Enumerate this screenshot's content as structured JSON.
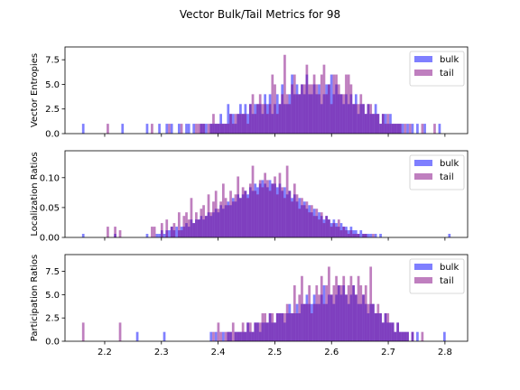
{
  "chart_data": {
    "type": "bar",
    "title": "Vector Bulk/Tail Metrics for 98",
    "colors": {
      "bulk": "#0000ff",
      "tail": "#800080"
    },
    "opacity": 0.5,
    "legend_placement": "top-right",
    "grid": false,
    "xlim": [
      2.13,
      2.84
    ],
    "xticks": [
      "2.2",
      "2.3",
      "2.4",
      "2.5",
      "2.6",
      "2.7",
      "2.8"
    ],
    "panels": [
      {
        "ylabel": "Vector Entropies",
        "ylim": [
          0,
          8.8
        ],
        "yticks": [
          "0.0",
          "2.5",
          "5.0",
          "7.5"
        ],
        "series": [
          {
            "name": "bulk",
            "x_range": [
              2.16,
              2.81
            ],
            "values": [
              1,
              0,
              0,
              0,
              0,
              0,
              0,
              0,
              0,
              0,
              0,
              0,
              0,
              0,
              0,
              0,
              1,
              0,
              0,
              0,
              0,
              0,
              0,
              0,
              0,
              0,
              1,
              0,
              0,
              0,
              0,
              1,
              0,
              0,
              1,
              0,
              1,
              0,
              0,
              1,
              0,
              0,
              1,
              1,
              0,
              1,
              0,
              0,
              1,
              1,
              1,
              0,
              1,
              1,
              1,
              1,
              2,
              1,
              1,
              3,
              2,
              2,
              1,
              2,
              3,
              2,
              3,
              2,
              3,
              2,
              3,
              3,
              3,
              2,
              4,
              3,
              4,
              2,
              3,
              4,
              3,
              5,
              3,
              3,
              4,
              6,
              4,
              5,
              4,
              5,
              4,
              6,
              4,
              4,
              5,
              4,
              5,
              3,
              4,
              5,
              5,
              6,
              4,
              5,
              4,
              4,
              3,
              4,
              3,
              4,
              3,
              4,
              2,
              3,
              3,
              2,
              3,
              2,
              2,
              3,
              2,
              1,
              2,
              2,
              1,
              2,
              1,
              1,
              1,
              1,
              1,
              0,
              1,
              0,
              1,
              0,
              1,
              0,
              0,
              1,
              0,
              0,
              0,
              0,
              0,
              1,
              0,
              0,
              0,
              0
            ]
          },
          {
            "name": "tail",
            "x_range": [
              2.16,
              2.81
            ],
            "values": [
              0,
              0,
              0,
              0,
              0,
              0,
              0,
              0,
              0,
              0,
              1,
              0,
              0,
              0,
              0,
              0,
              0,
              0,
              0,
              0,
              0,
              0,
              0,
              0,
              0,
              0,
              0,
              0,
              1,
              0,
              0,
              0,
              0,
              0,
              0,
              1,
              0,
              0,
              0,
              0,
              1,
              0,
              0,
              0,
              0,
              0,
              1,
              1,
              1,
              1,
              0,
              1,
              1,
              2,
              1,
              1,
              1,
              1,
              1,
              1,
              2,
              1,
              2,
              2,
              2,
              2,
              2,
              1,
              3,
              4,
              2,
              3,
              4,
              3,
              3,
              2,
              3,
              6,
              5,
              2,
              3,
              4,
              8,
              4,
              3,
              5,
              6,
              4,
              4,
              5,
              5,
              7,
              5,
              5,
              6,
              5,
              4,
              6,
              7,
              4,
              5,
              3,
              6,
              6,
              5,
              4,
              4,
              6,
              6,
              5,
              3,
              3,
              3,
              4,
              3,
              2,
              3,
              3,
              2,
              2,
              2,
              1,
              2,
              1,
              2,
              1,
              1,
              1,
              1,
              1,
              0,
              1,
              0,
              1,
              0,
              0,
              0,
              0,
              1,
              0,
              0,
              0,
              0,
              1,
              0,
              0,
              0,
              0,
              0,
              0
            ]
          }
        ]
      },
      {
        "ylabel": "Localization Ratios",
        "ylim": [
          0,
          0.145
        ],
        "yticks": [
          "0.00",
          "0.05",
          "0.10"
        ],
        "series": [
          {
            "name": "bulk",
            "x_range": [
              2.16,
              2.81
            ],
            "values": [
              0.006,
              0,
              0,
              0,
              0,
              0,
              0,
              0,
              0,
              0,
              0,
              0,
              0,
              0.006,
              0,
              0,
              0,
              0,
              0,
              0,
              0,
              0,
              0,
              0,
              0,
              0,
              0.006,
              0,
              0,
              0,
              0.006,
              0.006,
              0.012,
              0.006,
              0.012,
              0.012,
              0.018,
              0.012,
              0.018,
              0.012,
              0.018,
              0.018,
              0.024,
              0.018,
              0.03,
              0.024,
              0.03,
              0.03,
              0.036,
              0.03,
              0.036,
              0.042,
              0.036,
              0.042,
              0.048,
              0.042,
              0.054,
              0.048,
              0.054,
              0.06,
              0.054,
              0.066,
              0.06,
              0.072,
              0.066,
              0.072,
              0.078,
              0.072,
              0.084,
              0.078,
              0.09,
              0.084,
              0.09,
              0.096,
              0.09,
              0.084,
              0.096,
              0.09,
              0.09,
              0.084,
              0.09,
              0.078,
              0.084,
              0.072,
              0.078,
              0.066,
              0.072,
              0.06,
              0.066,
              0.054,
              0.06,
              0.048,
              0.054,
              0.042,
              0.048,
              0.036,
              0.042,
              0.036,
              0.03,
              0.036,
              0.03,
              0.024,
              0.03,
              0.024,
              0.018,
              0.024,
              0.018,
              0.018,
              0.012,
              0.018,
              0.012,
              0.012,
              0.006,
              0.012,
              0.006,
              0.006,
              0.006,
              0.006,
              0,
              0.006,
              0,
              0.006,
              0,
              0,
              0,
              0,
              0,
              0,
              0,
              0,
              0,
              0,
              0,
              0,
              0,
              0,
              0,
              0,
              0,
              0,
              0,
              0,
              0,
              0,
              0,
              0,
              0,
              0,
              0,
              0.006
            ]
          },
          {
            "name": "tail",
            "x_range": [
              2.16,
              2.81
            ],
            "values": [
              0,
              0,
              0,
              0,
              0,
              0,
              0,
              0,
              0,
              0,
              0.018,
              0,
              0,
              0.018,
              0,
              0.012,
              0,
              0,
              0,
              0,
              0,
              0,
              0,
              0,
              0,
              0,
              0,
              0,
              0.018,
              0.018,
              0,
              0,
              0.024,
              0,
              0.03,
              0,
              0.018,
              0.024,
              0,
              0.042,
              0.012,
              0.036,
              0.042,
              0.03,
              0.066,
              0.024,
              0.042,
              0.03,
              0.048,
              0.054,
              0.036,
              0.072,
              0.042,
              0.06,
              0.078,
              0.048,
              0.06,
              0.09,
              0.066,
              0.054,
              0.078,
              0.06,
              0.072,
              0.102,
              0.066,
              0.084,
              0.078,
              0.066,
              0.09,
              0.12,
              0.078,
              0.072,
              0.096,
              0.084,
              0.108,
              0.096,
              0.078,
              0.09,
              0.102,
              0.072,
              0.108,
              0.084,
              0.066,
              0.12,
              0.078,
              0.06,
              0.09,
              0.072,
              0.048,
              0.066,
              0.054,
              0.06,
              0.042,
              0.054,
              0.036,
              0.048,
              0.03,
              0.042,
              0.024,
              0.036,
              0.03,
              0.018,
              0.024,
              0.018,
              0.03,
              0.012,
              0.018,
              0.012,
              0.006,
              0.012,
              0.006,
              0.006,
              0.006,
              0,
              0.006,
              0.006,
              0,
              0,
              0.006,
              0,
              0,
              0,
              0,
              0,
              0,
              0,
              0,
              0,
              0,
              0,
              0,
              0,
              0,
              0,
              0,
              0,
              0,
              0,
              0,
              0,
              0,
              0,
              0,
              0,
              0,
              0,
              0,
              0,
              0,
              0
            ]
          }
        ]
      },
      {
        "ylabel": "Participation Ratios",
        "ylim": [
          0,
          9.3
        ],
        "yticks": [
          "0.0",
          "2.5",
          "5.0",
          "7.5"
        ],
        "series": [
          {
            "name": "bulk",
            "x_range": [
              2.16,
              2.81
            ],
            "values": [
              0,
              0,
              0,
              0,
              0,
              0,
              0,
              0,
              0,
              0,
              0,
              0,
              0,
              0,
              0,
              0,
              0,
              0,
              0,
              0,
              0,
              0,
              1,
              0,
              0,
              0,
              0,
              0,
              0,
              0,
              0,
              0,
              0,
              1,
              0,
              0,
              0,
              0,
              0,
              0,
              0,
              0,
              0,
              0,
              0,
              0,
              0,
              0,
              0,
              0,
              0,
              0,
              1,
              0,
              1,
              0,
              0,
              1,
              0,
              1,
              1,
              0,
              1,
              1,
              1,
              1,
              1,
              2,
              1,
              1,
              2,
              2,
              1,
              2,
              2,
              2,
              3,
              2,
              2,
              3,
              3,
              3,
              2,
              3,
              4,
              3,
              3,
              4,
              3,
              4,
              4,
              5,
              4,
              4,
              5,
              4,
              4,
              5,
              6,
              4,
              5,
              5,
              4,
              5,
              6,
              5,
              6,
              5,
              4,
              5,
              6,
              5,
              4,
              4,
              5,
              4,
              3,
              4,
              4,
              3,
              3,
              3,
              2,
              3,
              2,
              2,
              2,
              1,
              2,
              1,
              1,
              1,
              1,
              0,
              1,
              0,
              1,
              0,
              0,
              0,
              0,
              0,
              0,
              0,
              0,
              0,
              0,
              1,
              0,
              0
            ]
          },
          {
            "name": "tail",
            "x_range": [
              2.16,
              2.81
            ],
            "values": [
              2,
              0,
              0,
              0,
              0,
              0,
              0,
              0,
              0,
              0,
              0,
              0,
              0,
              0,
              0,
              2,
              0,
              0,
              0,
              0,
              0,
              0,
              0,
              0,
              0,
              0,
              0,
              0,
              0,
              0,
              0,
              0,
              0,
              0,
              0,
              0,
              0,
              0,
              0,
              0,
              0,
              0,
              0,
              0,
              0,
              0,
              0,
              0,
              0,
              0,
              0,
              0,
              0,
              1,
              0,
              2,
              1,
              0,
              1,
              1,
              1,
              2,
              1,
              1,
              1,
              2,
              1,
              2,
              2,
              1,
              2,
              2,
              2,
              3,
              3,
              2,
              3,
              3,
              2,
              3,
              3,
              3,
              3,
              4,
              3,
              3,
              6,
              3,
              5,
              7,
              4,
              4,
              6,
              3,
              4,
              6,
              5,
              7,
              4,
              6,
              8,
              5,
              6,
              7,
              6,
              6,
              7,
              5,
              6,
              7,
              6,
              5,
              7,
              6,
              5,
              6,
              4,
              8,
              4,
              3,
              4,
              3,
              2,
              3,
              3,
              2,
              2,
              1,
              2,
              1,
              1,
              1,
              1,
              0,
              1,
              0,
              0,
              0,
              1,
              0,
              0,
              0,
              0,
              0,
              0,
              0,
              0,
              0,
              0,
              0
            ]
          }
        ]
      }
    ]
  }
}
